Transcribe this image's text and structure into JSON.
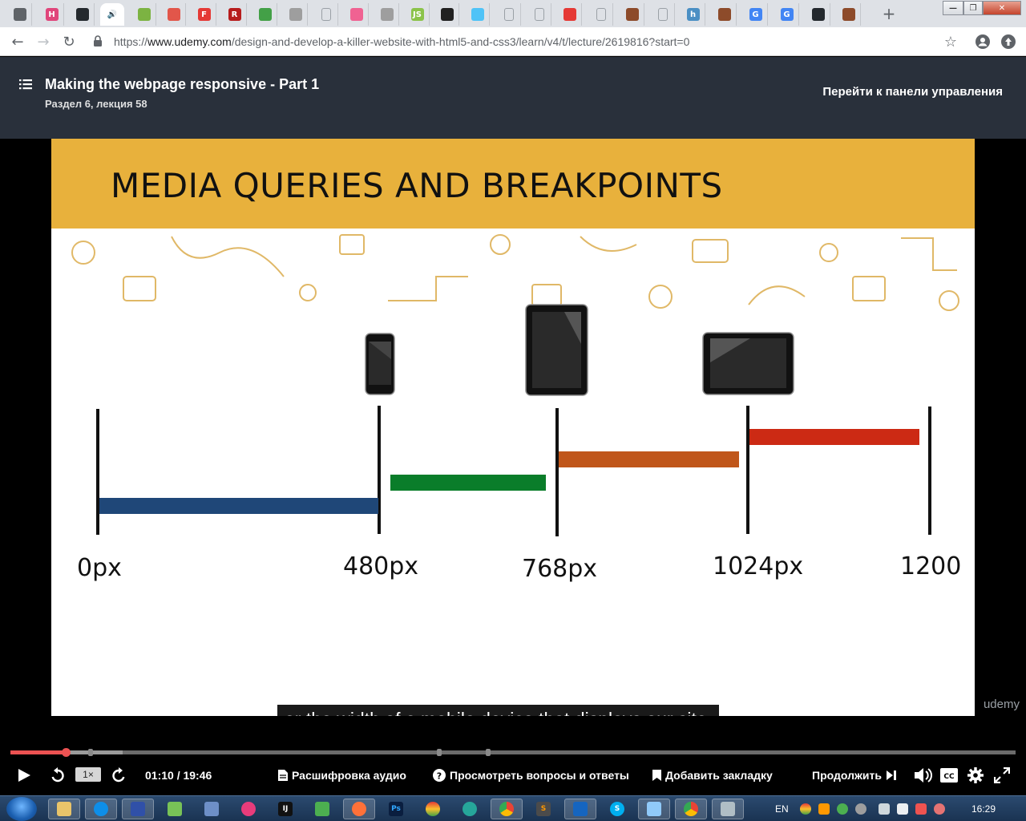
{
  "browser": {
    "tabs": [
      {
        "icon": "folder-icon",
        "color": "#5f6368",
        "glyph": ""
      },
      {
        "icon": "h-icon",
        "color": "#e0457b",
        "glyph": "H"
      },
      {
        "icon": "github-icon",
        "color": "#24292e",
        "glyph": ""
      },
      {
        "icon": "audio-playing-icon",
        "color": "#ffffff",
        "glyph": ""
      },
      {
        "icon": "green-cube-icon",
        "color": "#7cb342",
        "glyph": ""
      },
      {
        "icon": "diamond-red-icon",
        "color": "#e2564a",
        "glyph": ""
      },
      {
        "icon": "f-icon",
        "color": "#e53935",
        "glyph": "F"
      },
      {
        "icon": "r-icon",
        "color": "#b71c1c",
        "glyph": "R"
      },
      {
        "icon": "grid-icon",
        "color": "#43a047",
        "glyph": ""
      },
      {
        "icon": "drive-icon",
        "color": "#9e9e9e",
        "glyph": ""
      },
      {
        "icon": "page-icon",
        "color": "#9aa0a6",
        "glyph": ""
      },
      {
        "icon": "pinwheel-icon",
        "color": "#f06292",
        "glyph": ""
      },
      {
        "icon": "bar-icon",
        "color": "#9e9e9e",
        "glyph": ""
      },
      {
        "icon": "js-icon",
        "color": "#8bc34a",
        "glyph": "JS"
      },
      {
        "icon": "dark-square-icon",
        "color": "#212121",
        "glyph": ""
      },
      {
        "icon": "heart-icon",
        "color": "#4fc3f7",
        "glyph": ""
      },
      {
        "icon": "page-icon",
        "color": "#9aa0a6",
        "glyph": ""
      },
      {
        "icon": "page-icon",
        "color": "#9aa0a6",
        "glyph": ""
      },
      {
        "icon": "youtube-icon",
        "color": "#e53935",
        "glyph": ""
      },
      {
        "icon": "page-icon",
        "color": "#9aa0a6",
        "glyph": ""
      },
      {
        "icon": "blocks-icon",
        "color": "#8d4b2a",
        "glyph": ""
      },
      {
        "icon": "page-icon",
        "color": "#9aa0a6",
        "glyph": ""
      },
      {
        "icon": "h-square-icon",
        "color": "#4a8fc4",
        "glyph": "h"
      },
      {
        "icon": "blocks-icon",
        "color": "#8d4b2a",
        "glyph": ""
      },
      {
        "icon": "google-icon",
        "color": "#4285f4",
        "glyph": "G"
      },
      {
        "icon": "google-icon",
        "color": "#4285f4",
        "glyph": "G"
      },
      {
        "icon": "github-icon",
        "color": "#24292e",
        "glyph": ""
      },
      {
        "icon": "blocks-icon",
        "color": "#8d4b2a",
        "glyph": ""
      }
    ],
    "url_host": "www.udemy.com",
    "url_prefix": "https://",
    "url_path": "/design-and-develop-a-killer-website-with-html5-and-css3/learn/v4/t/lecture/2619816?start=0"
  },
  "header": {
    "lecture_title": "Making the webpage responsive - Part 1",
    "lecture_subtitle": "Раздел 6, лекция 58",
    "dashboard_link": "Перейти к панели управления"
  },
  "slide": {
    "title": "MEDIA QUERIES AND BREAKPOINTS",
    "breakpoint_labels": [
      "0px",
      "480px",
      "768px",
      "1024px",
      "1200"
    ],
    "ranges": [
      {
        "color": "#1f4778"
      },
      {
        "color": "#0a7d2a"
      },
      {
        "color": "#c0561a"
      },
      {
        "color": "#cc2a14"
      }
    ],
    "devices": [
      "phone-icon",
      "tablet-portrait-icon",
      "tablet-landscape-icon"
    ],
    "watermark": "udemy"
  },
  "caption": "or the width of a mobile device that displays our site.",
  "player": {
    "time": "01:10 / 19:46",
    "progress": 0.055,
    "speed": "1×",
    "transcript": "Расшифровка аудио",
    "qa": "Просмотреть вопросы и ответы",
    "bookmark": "Добавить закладку",
    "continue": "Продолжить"
  },
  "taskbar": {
    "language": "EN",
    "clock": "16:29"
  }
}
